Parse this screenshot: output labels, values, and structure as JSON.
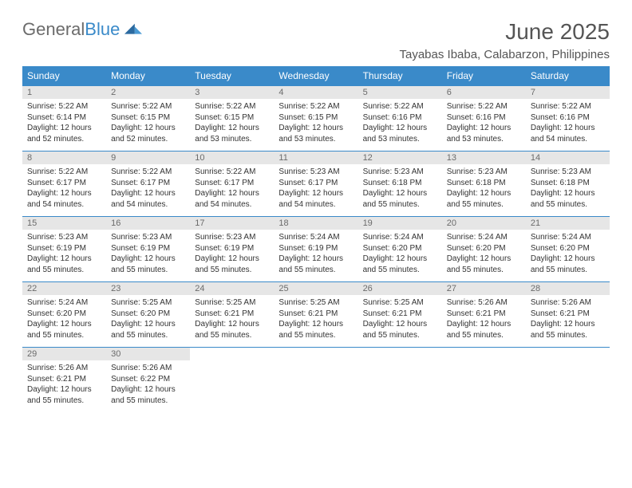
{
  "brand": {
    "part1": "General",
    "part2": "Blue"
  },
  "title": "June 2025",
  "location": "Tayabas Ibaba, Calabarzon, Philippines",
  "colors": {
    "header_bg": "#3a8ac9",
    "header_text": "#ffffff",
    "daynum_bg": "#e6e6e6",
    "daynum_text": "#6b6b6b",
    "body_text": "#333333",
    "rule": "#3a8ac9"
  },
  "weekdays": [
    "Sunday",
    "Monday",
    "Tuesday",
    "Wednesday",
    "Thursday",
    "Friday",
    "Saturday"
  ],
  "weeks": [
    [
      {
        "n": "1",
        "sr": "Sunrise: 5:22 AM",
        "ss": "Sunset: 6:14 PM",
        "d1": "Daylight: 12 hours",
        "d2": "and 52 minutes."
      },
      {
        "n": "2",
        "sr": "Sunrise: 5:22 AM",
        "ss": "Sunset: 6:15 PM",
        "d1": "Daylight: 12 hours",
        "d2": "and 52 minutes."
      },
      {
        "n": "3",
        "sr": "Sunrise: 5:22 AM",
        "ss": "Sunset: 6:15 PM",
        "d1": "Daylight: 12 hours",
        "d2": "and 53 minutes."
      },
      {
        "n": "4",
        "sr": "Sunrise: 5:22 AM",
        "ss": "Sunset: 6:15 PM",
        "d1": "Daylight: 12 hours",
        "d2": "and 53 minutes."
      },
      {
        "n": "5",
        "sr": "Sunrise: 5:22 AM",
        "ss": "Sunset: 6:16 PM",
        "d1": "Daylight: 12 hours",
        "d2": "and 53 minutes."
      },
      {
        "n": "6",
        "sr": "Sunrise: 5:22 AM",
        "ss": "Sunset: 6:16 PM",
        "d1": "Daylight: 12 hours",
        "d2": "and 53 minutes."
      },
      {
        "n": "7",
        "sr": "Sunrise: 5:22 AM",
        "ss": "Sunset: 6:16 PM",
        "d1": "Daylight: 12 hours",
        "d2": "and 54 minutes."
      }
    ],
    [
      {
        "n": "8",
        "sr": "Sunrise: 5:22 AM",
        "ss": "Sunset: 6:17 PM",
        "d1": "Daylight: 12 hours",
        "d2": "and 54 minutes."
      },
      {
        "n": "9",
        "sr": "Sunrise: 5:22 AM",
        "ss": "Sunset: 6:17 PM",
        "d1": "Daylight: 12 hours",
        "d2": "and 54 minutes."
      },
      {
        "n": "10",
        "sr": "Sunrise: 5:22 AM",
        "ss": "Sunset: 6:17 PM",
        "d1": "Daylight: 12 hours",
        "d2": "and 54 minutes."
      },
      {
        "n": "11",
        "sr": "Sunrise: 5:23 AM",
        "ss": "Sunset: 6:17 PM",
        "d1": "Daylight: 12 hours",
        "d2": "and 54 minutes."
      },
      {
        "n": "12",
        "sr": "Sunrise: 5:23 AM",
        "ss": "Sunset: 6:18 PM",
        "d1": "Daylight: 12 hours",
        "d2": "and 55 minutes."
      },
      {
        "n": "13",
        "sr": "Sunrise: 5:23 AM",
        "ss": "Sunset: 6:18 PM",
        "d1": "Daylight: 12 hours",
        "d2": "and 55 minutes."
      },
      {
        "n": "14",
        "sr": "Sunrise: 5:23 AM",
        "ss": "Sunset: 6:18 PM",
        "d1": "Daylight: 12 hours",
        "d2": "and 55 minutes."
      }
    ],
    [
      {
        "n": "15",
        "sr": "Sunrise: 5:23 AM",
        "ss": "Sunset: 6:19 PM",
        "d1": "Daylight: 12 hours",
        "d2": "and 55 minutes."
      },
      {
        "n": "16",
        "sr": "Sunrise: 5:23 AM",
        "ss": "Sunset: 6:19 PM",
        "d1": "Daylight: 12 hours",
        "d2": "and 55 minutes."
      },
      {
        "n": "17",
        "sr": "Sunrise: 5:23 AM",
        "ss": "Sunset: 6:19 PM",
        "d1": "Daylight: 12 hours",
        "d2": "and 55 minutes."
      },
      {
        "n": "18",
        "sr": "Sunrise: 5:24 AM",
        "ss": "Sunset: 6:19 PM",
        "d1": "Daylight: 12 hours",
        "d2": "and 55 minutes."
      },
      {
        "n": "19",
        "sr": "Sunrise: 5:24 AM",
        "ss": "Sunset: 6:20 PM",
        "d1": "Daylight: 12 hours",
        "d2": "and 55 minutes."
      },
      {
        "n": "20",
        "sr": "Sunrise: 5:24 AM",
        "ss": "Sunset: 6:20 PM",
        "d1": "Daylight: 12 hours",
        "d2": "and 55 minutes."
      },
      {
        "n": "21",
        "sr": "Sunrise: 5:24 AM",
        "ss": "Sunset: 6:20 PM",
        "d1": "Daylight: 12 hours",
        "d2": "and 55 minutes."
      }
    ],
    [
      {
        "n": "22",
        "sr": "Sunrise: 5:24 AM",
        "ss": "Sunset: 6:20 PM",
        "d1": "Daylight: 12 hours",
        "d2": "and 55 minutes."
      },
      {
        "n": "23",
        "sr": "Sunrise: 5:25 AM",
        "ss": "Sunset: 6:20 PM",
        "d1": "Daylight: 12 hours",
        "d2": "and 55 minutes."
      },
      {
        "n": "24",
        "sr": "Sunrise: 5:25 AM",
        "ss": "Sunset: 6:21 PM",
        "d1": "Daylight: 12 hours",
        "d2": "and 55 minutes."
      },
      {
        "n": "25",
        "sr": "Sunrise: 5:25 AM",
        "ss": "Sunset: 6:21 PM",
        "d1": "Daylight: 12 hours",
        "d2": "and 55 minutes."
      },
      {
        "n": "26",
        "sr": "Sunrise: 5:25 AM",
        "ss": "Sunset: 6:21 PM",
        "d1": "Daylight: 12 hours",
        "d2": "and 55 minutes."
      },
      {
        "n": "27",
        "sr": "Sunrise: 5:26 AM",
        "ss": "Sunset: 6:21 PM",
        "d1": "Daylight: 12 hours",
        "d2": "and 55 minutes."
      },
      {
        "n": "28",
        "sr": "Sunrise: 5:26 AM",
        "ss": "Sunset: 6:21 PM",
        "d1": "Daylight: 12 hours",
        "d2": "and 55 minutes."
      }
    ],
    [
      {
        "n": "29",
        "sr": "Sunrise: 5:26 AM",
        "ss": "Sunset: 6:21 PM",
        "d1": "Daylight: 12 hours",
        "d2": "and 55 minutes."
      },
      {
        "n": "30",
        "sr": "Sunrise: 5:26 AM",
        "ss": "Sunset: 6:22 PM",
        "d1": "Daylight: 12 hours",
        "d2": "and 55 minutes."
      },
      null,
      null,
      null,
      null,
      null
    ]
  ]
}
